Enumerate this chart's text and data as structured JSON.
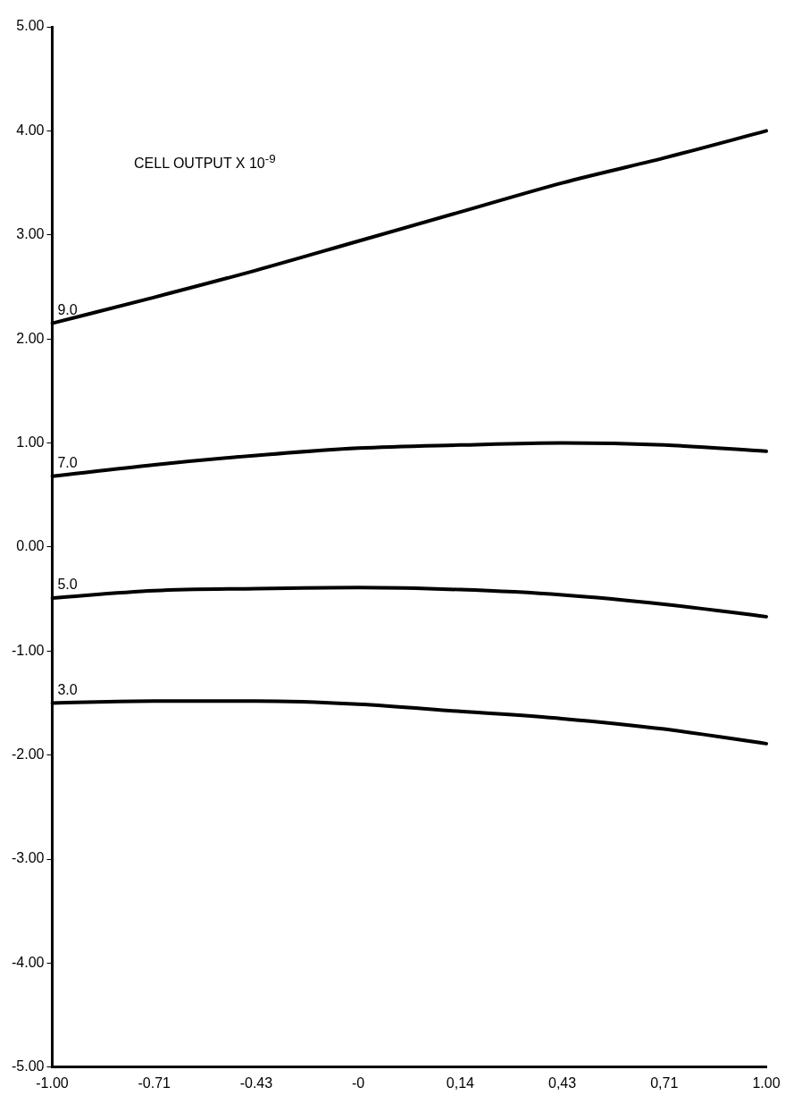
{
  "chart_data": {
    "type": "line",
    "categories": [
      "-1.00",
      "-0.71",
      "-0.43",
      "-0",
      "0,14",
      "0,43",
      "0,71",
      "1.00"
    ],
    "series": [
      {
        "name": "9.0",
        "color": "#000000",
        "values": [
          2.15,
          2.4,
          2.66,
          2.94,
          3.22,
          3.5,
          3.74,
          4.0
        ]
      },
      {
        "name": "7.0",
        "color": "#000000",
        "values": [
          0.68,
          0.79,
          0.88,
          0.95,
          0.98,
          1.0,
          0.98,
          0.92
        ]
      },
      {
        "name": "5.0",
        "color": "#000000",
        "values": [
          -0.49,
          -0.42,
          -0.4,
          -0.39,
          -0.41,
          -0.46,
          -0.55,
          -0.67
        ]
      },
      {
        "name": "3.0",
        "color": "#000000",
        "values": [
          -1.5,
          -1.48,
          -1.48,
          -1.51,
          -1.58,
          -1.65,
          -1.75,
          -1.89
        ]
      }
    ],
    "ylim": [
      -5,
      5
    ],
    "yticks": [
      {
        "value": -5,
        "label": "-5.00"
      },
      {
        "value": -4,
        "label": "-4.00"
      },
      {
        "value": -3,
        "label": "-3.00"
      },
      {
        "value": -2,
        "label": "-2.00"
      },
      {
        "value": -1,
        "label": "-1.00"
      },
      {
        "value": 0,
        "label": "0.00"
      },
      {
        "value": 1,
        "label": "1.00"
      },
      {
        "value": 2,
        "label": "2.00"
      },
      {
        "value": 3,
        "label": "3.00"
      },
      {
        "value": 4,
        "label": "4.00"
      },
      {
        "value": 5,
        "label": "5.00"
      }
    ],
    "annotations": [
      "CELL OUTPUT X 10$^{-9}$"
    ],
    "grid": false,
    "legend": false,
    "marker": "none",
    "line_style": "solid"
  }
}
